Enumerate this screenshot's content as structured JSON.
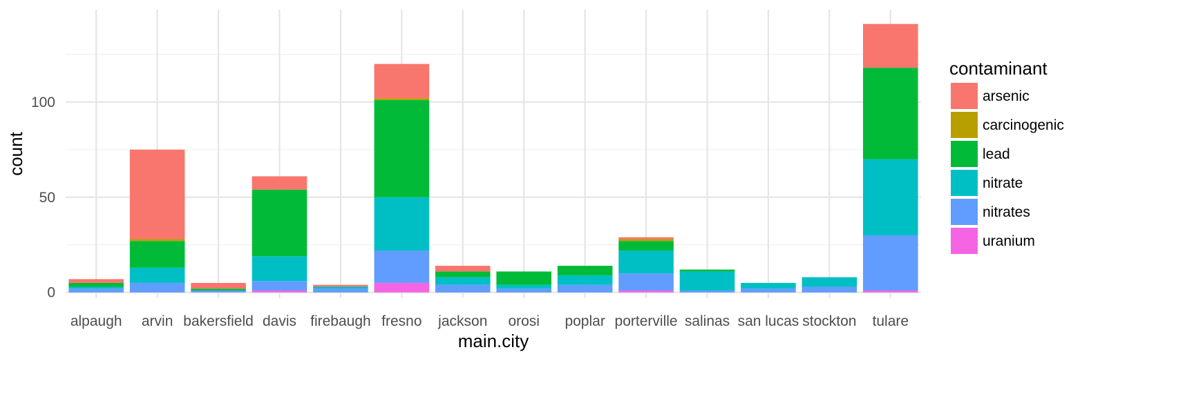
{
  "chart_data": {
    "type": "bar",
    "stacked": true,
    "categories": [
      "alpaugh",
      "arvin",
      "bakersfield",
      "davis",
      "firebaugh",
      "fresno",
      "jackson",
      "orosi",
      "poplar",
      "porterville",
      "salinas",
      "san lucas",
      "stockton",
      "tulare"
    ],
    "series": [
      {
        "name": "arsenic",
        "color": "#F8766D",
        "values": [
          2,
          47,
          3,
          7,
          1,
          18,
          3,
          0,
          0,
          1,
          0,
          0,
          0,
          23
        ]
      },
      {
        "name": "carcinogenic",
        "color": "#B79F00",
        "values": [
          0,
          1,
          0,
          0,
          0,
          1,
          0,
          0,
          0,
          1,
          0,
          0,
          0,
          0
        ]
      },
      {
        "name": "lead",
        "color": "#00BA38",
        "values": [
          2,
          14,
          1,
          35,
          0,
          51,
          3,
          7,
          5,
          5,
          1,
          0,
          0,
          48
        ]
      },
      {
        "name": "nitrate",
        "color": "#00BFC4",
        "values": [
          1,
          8,
          0,
          13,
          1,
          28,
          4,
          2,
          5,
          12,
          10,
          3,
          5,
          40
        ]
      },
      {
        "name": "nitrates",
        "color": "#619CFF",
        "values": [
          2,
          5,
          1,
          5,
          2,
          17,
          4,
          2,
          4,
          9,
          1,
          2,
          3,
          29
        ]
      },
      {
        "name": "uranium",
        "color": "#F564E3",
        "values": [
          0,
          0,
          0,
          1,
          0,
          5,
          0,
          0,
          0,
          1,
          0,
          0,
          0,
          1
        ]
      }
    ],
    "xlabel": "main.city",
    "ylabel": "count",
    "yticks": [
      0,
      50,
      100
    ],
    "ylim": [
      -3,
      148.5
    ],
    "grid": true,
    "legend": {
      "title": "contaminant",
      "position": "right"
    }
  }
}
